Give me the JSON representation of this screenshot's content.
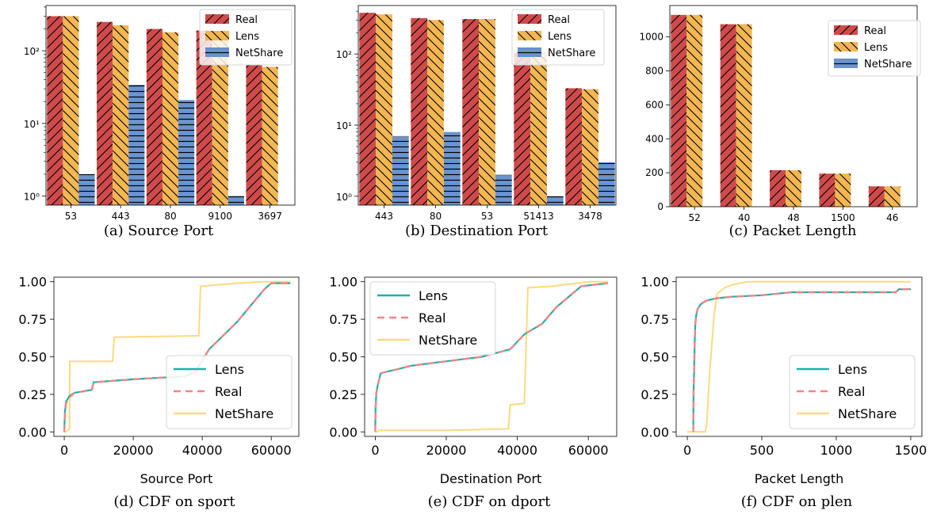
{
  "colors": {
    "real": "#cf4b4b",
    "lens": "#f2b653",
    "netshare": "#6a94cf",
    "cdf_lens": "#19b3a8",
    "cdf_real": "#ee8686",
    "cdf_netshare": "#fcda80"
  },
  "chart_data": [
    {
      "type": "bar",
      "caption": "(a)  Source Port",
      "title": "",
      "xlabel": "",
      "ylabel": "",
      "yscale": "log",
      "ylim": [
        0.75,
        420
      ],
      "yticks": [
        "10⁰",
        "10¹",
        "10²"
      ],
      "categories": [
        "53",
        "443",
        "80",
        "9100",
        "3697"
      ],
      "series": [
        {
          "name": "Real",
          "values": [
            300,
            250,
            200,
            190,
            65
          ]
        },
        {
          "name": "Lens",
          "values": [
            300,
            225,
            180,
            180,
            60
          ]
        },
        {
          "name": "NetShare",
          "values": [
            2,
            34,
            21,
            1,
            0
          ]
        }
      ],
      "legend": "top-right"
    },
    {
      "type": "bar",
      "caption": "(b)  Destination Port",
      "title": "",
      "xlabel": "",
      "ylabel": "",
      "yscale": "log",
      "ylim": [
        0.75,
        480
      ],
      "yticks": [
        "10⁰",
        "10¹",
        "10²"
      ],
      "categories": [
        "443",
        "80",
        "53",
        "51413",
        "3478"
      ],
      "series": [
        {
          "name": "Real",
          "values": [
            380,
            320,
            310,
            105,
            33
          ]
        },
        {
          "name": "Lens",
          "values": [
            360,
            300,
            310,
            105,
            32
          ]
        },
        {
          "name": "NetShare",
          "values": [
            7,
            8,
            2,
            1,
            3
          ]
        }
      ],
      "legend": "top-right"
    },
    {
      "type": "bar",
      "caption": "(c)  Packet Length",
      "title": "",
      "xlabel": "",
      "ylabel": "",
      "yscale": "linear",
      "ylim": [
        0,
        1185
      ],
      "yticks": [
        "0",
        "200",
        "400",
        "600",
        "800",
        "1000"
      ],
      "categories": [
        "52",
        "40",
        "48",
        "1500",
        "46"
      ],
      "series": [
        {
          "name": "Real",
          "values": [
            1130,
            1075,
            215,
            195,
            120
          ]
        },
        {
          "name": "Lens",
          "values": [
            1130,
            1075,
            215,
            195,
            120
          ]
        },
        {
          "name": "NetShare",
          "values": [
            0,
            0,
            0,
            0,
            0
          ]
        }
      ],
      "legend": "top-right"
    },
    {
      "type": "line",
      "caption": "(d)  CDF on sport",
      "title": "",
      "xlabel": "Source Port",
      "ylabel": "",
      "xlim": [
        -3000,
        68000
      ],
      "ylim": [
        -0.03,
        1.03
      ],
      "xticks": [
        "0",
        "20000",
        "40000",
        "60000"
      ],
      "yticks": [
        "0.00",
        "0.25",
        "0.50",
        "0.75",
        "1.00"
      ],
      "series": [
        {
          "name": "Lens",
          "x": [
            0,
            200,
            500,
            1500,
            3000,
            8000,
            8500,
            20000,
            35000,
            38000,
            42000,
            50000,
            58000,
            60000,
            65535
          ],
          "y": [
            0.02,
            0.13,
            0.2,
            0.24,
            0.26,
            0.28,
            0.33,
            0.35,
            0.37,
            0.4,
            0.55,
            0.73,
            0.95,
            0.99,
            0.99
          ]
        },
        {
          "name": "Real",
          "x": [
            0,
            200,
            500,
            1500,
            3000,
            8000,
            8500,
            20000,
            35000,
            38000,
            42000,
            50000,
            58000,
            60000,
            65535
          ],
          "y": [
            0.0,
            0.1,
            0.19,
            0.23,
            0.26,
            0.28,
            0.33,
            0.35,
            0.37,
            0.4,
            0.55,
            0.73,
            0.95,
            0.99,
            0.99
          ]
        },
        {
          "name": "NetShare",
          "x": [
            0,
            500,
            1500,
            1600,
            14000,
            14500,
            39000,
            39500,
            50000,
            58000,
            65535
          ],
          "y": [
            0.0,
            0.0,
            0.02,
            0.47,
            0.47,
            0.63,
            0.64,
            0.97,
            0.99,
            1.0,
            1.0
          ]
        }
      ],
      "legend": "bottom-right"
    },
    {
      "type": "line",
      "caption": "(e)  CDF on dport",
      "title": "",
      "xlabel": "Destination Port",
      "ylabel": "",
      "xlim": [
        -3000,
        68000
      ],
      "ylim": [
        -0.03,
        1.03
      ],
      "xticks": [
        "0",
        "20000",
        "40000",
        "60000"
      ],
      "yticks": [
        "0.00",
        "0.25",
        "0.50",
        "0.75",
        "1.00"
      ],
      "series": [
        {
          "name": "Lens",
          "x": [
            0,
            100,
            300,
            600,
            1500,
            3000,
            5000,
            10000,
            20000,
            30000,
            38000,
            42000,
            47000,
            51000,
            58000,
            65535
          ],
          "y": [
            0.03,
            0.17,
            0.26,
            0.3,
            0.39,
            0.4,
            0.41,
            0.44,
            0.47,
            0.5,
            0.55,
            0.65,
            0.72,
            0.83,
            0.97,
            0.99
          ]
        },
        {
          "name": "Real",
          "x": [
            0,
            100,
            300,
            600,
            1500,
            3000,
            5000,
            10000,
            20000,
            30000,
            38000,
            42000,
            47000,
            51000,
            58000,
            65535
          ],
          "y": [
            0.0,
            0.16,
            0.26,
            0.3,
            0.39,
            0.4,
            0.41,
            0.44,
            0.47,
            0.5,
            0.55,
            0.65,
            0.72,
            0.83,
            0.97,
            0.99
          ]
        },
        {
          "name": "NetShare",
          "x": [
            0,
            500,
            1000,
            3000,
            20000,
            37500,
            38000,
            42000,
            42500,
            43000,
            50000,
            60000,
            65535
          ],
          "y": [
            0.0,
            0.0,
            0.01,
            0.01,
            0.01,
            0.02,
            0.18,
            0.19,
            0.6,
            0.96,
            0.97,
            1.0,
            1.0
          ]
        }
      ],
      "legend": "top-left"
    },
    {
      "type": "line",
      "caption": "(f)  CDF on plen",
      "title": "",
      "xlabel": "Packet Length",
      "ylabel": "",
      "xlim": [
        -75,
        1575
      ],
      "ylim": [
        -0.03,
        1.03
      ],
      "xticks": [
        "0",
        "500",
        "1000",
        "1500"
      ],
      "yticks": [
        "0.00",
        "0.25",
        "0.50",
        "0.75",
        "1.00"
      ],
      "series": [
        {
          "name": "Lens",
          "x": [
            40,
            42,
            46,
            50,
            54,
            60,
            70,
            90,
            120,
            150,
            200,
            300,
            500,
            700,
            1000,
            1400,
            1420,
            1500
          ],
          "y": [
            0.04,
            0.28,
            0.42,
            0.62,
            0.72,
            0.78,
            0.82,
            0.85,
            0.87,
            0.88,
            0.89,
            0.9,
            0.91,
            0.93,
            0.93,
            0.93,
            0.95,
            0.95
          ]
        },
        {
          "name": "Real",
          "x": [
            40,
            42,
            46,
            50,
            54,
            60,
            70,
            90,
            120,
            150,
            200,
            300,
            500,
            700,
            1000,
            1400,
            1420,
            1500
          ],
          "y": [
            0.0,
            0.26,
            0.4,
            0.62,
            0.72,
            0.78,
            0.82,
            0.85,
            0.87,
            0.88,
            0.89,
            0.9,
            0.91,
            0.93,
            0.93,
            0.93,
            0.95,
            0.95
          ]
        },
        {
          "name": "NetShare",
          "x": [
            0,
            120,
            130,
            150,
            180,
            200,
            250,
            300,
            400,
            1500
          ],
          "y": [
            0.0,
            0.0,
            0.05,
            0.4,
            0.78,
            0.92,
            0.96,
            0.98,
            1.0,
            1.0
          ]
        }
      ],
      "legend": "bottom-right"
    }
  ]
}
